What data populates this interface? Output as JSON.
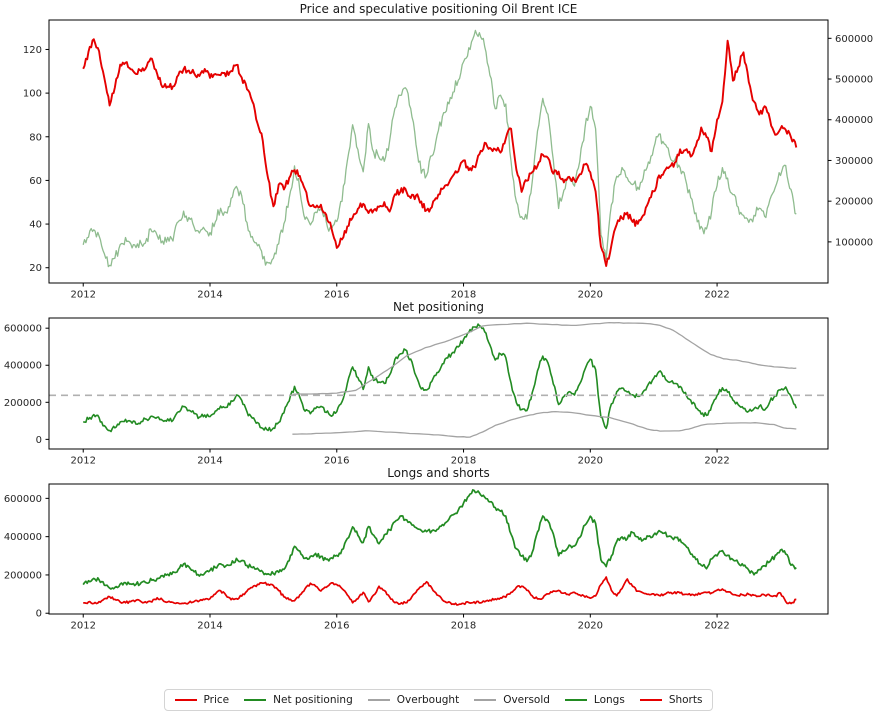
{
  "figure_background": "#ffffff",
  "legend": {
    "items": [
      {
        "label": "Price",
        "color": "#e50000"
      },
      {
        "label": "Net positioning",
        "color": "#228b22"
      },
      {
        "label": "Overbought",
        "color": "#a3a3a3"
      },
      {
        "label": "Oversold",
        "color": "#a3a3a3"
      },
      {
        "label": "Longs",
        "color": "#228b22"
      },
      {
        "label": "Shorts",
        "color": "#e50000"
      }
    ]
  },
  "chart_data": [
    {
      "id": "price-positioning",
      "type": "line",
      "title": "Price and speculative positioning Oil Brent ICE",
      "x_start": 2012.0,
      "x_step": 0.083333,
      "xlim": [
        2011.46,
        2023.75
      ],
      "x_ticks": [
        2012,
        2014,
        2016,
        2018,
        2020,
        2022
      ],
      "grid": false,
      "left_axis": {
        "lim": [
          13,
          133.5
        ],
        "ticks": [
          20,
          40,
          60,
          80,
          100,
          120
        ]
      },
      "right_axis": {
        "lim": [
          -1000,
          645000
        ],
        "ticks": [
          100000,
          200000,
          300000,
          400000,
          500000,
          600000
        ]
      },
      "series": [
        {
          "name": "Speculative positioning",
          "axis": "right",
          "color": "#8fbc8f",
          "width": 1.3,
          "jitter": 13000,
          "values": [
            95000,
            112000,
            132000,
            115000,
            72000,
            45000,
            62000,
            92000,
            108000,
            95000,
            84000,
            98000,
            108000,
            128000,
            116000,
            100000,
            110000,
            104000,
            148000,
            178000,
            158000,
            138000,
            120000,
            130000,
            122000,
            152000,
            183000,
            172000,
            205000,
            238000,
            212000,
            148000,
            112000,
            88000,
            60000,
            50000,
            58000,
            95000,
            145000,
            205000,
            288000,
            230000,
            155000,
            140000,
            170000,
            180000,
            148000,
            128000,
            150000,
            200000,
            300000,
            390000,
            330000,
            270000,
            390000,
            320000,
            310000,
            300000,
            350000,
            430000,
            460000,
            480000,
            430000,
            340000,
            270000,
            265000,
            310000,
            360000,
            410000,
            440000,
            470000,
            500000,
            540000,
            575000,
            605000,
            615000,
            580000,
            510000,
            430000,
            460000,
            440000,
            300000,
            200000,
            160000,
            155000,
            250000,
            370000,
            450000,
            410000,
            300000,
            185000,
            230000,
            260000,
            240000,
            300000,
            380000,
            430000,
            380000,
            120000,
            60000,
            190000,
            260000,
            280000,
            255000,
            240000,
            235000,
            255000,
            295000,
            330000,
            365000,
            340000,
            310000,
            300000,
            285000,
            255000,
            210000,
            170000,
            135000,
            130000,
            180000,
            240000,
            280000,
            255000,
            215000,
            185000,
            165000,
            150000,
            165000,
            180000,
            160000,
            205000,
            235000,
            265000,
            285000,
            230000,
            165000
          ]
        },
        {
          "name": "Price",
          "axis": "left",
          "color": "#e50000",
          "width": 1.9,
          "jitter": 1.5,
          "values": [
            111,
            119,
            125,
            119,
            107,
            94,
            103,
            113,
            114,
            111,
            109,
            110,
            112,
            116,
            109,
            103,
            103,
            103,
            108,
            111,
            110,
            109,
            108,
            111,
            107,
            109,
            108,
            108,
            110,
            113,
            107,
            102,
            96,
            86,
            78,
            61,
            48,
            58,
            56,
            61,
            65,
            62,
            56,
            48,
            48,
            49,
            44,
            38,
            29,
            33,
            39,
            43,
            47,
            49,
            45,
            46,
            48,
            50,
            46,
            54,
            55,
            56,
            52,
            53,
            50,
            46,
            48,
            52,
            56,
            58,
            62,
            64,
            69,
            65,
            66,
            72,
            77,
            75,
            74,
            73,
            79,
            84,
            65,
            55,
            60,
            64,
            67,
            72,
            70,
            63,
            64,
            59,
            62,
            60,
            63,
            67,
            64,
            55,
            30,
            21,
            30,
            40,
            43,
            45,
            41,
            40,
            44,
            50,
            55,
            62,
            64,
            66,
            68,
            74,
            74,
            71,
            76,
            84,
            80,
            73,
            88,
            96,
            124,
            106,
            112,
            119,
            105,
            96,
            90,
            94,
            88,
            81,
            84,
            83,
            80,
            75
          ]
        }
      ]
    },
    {
      "id": "net-positioning",
      "type": "line",
      "title": "Net positioning",
      "x_start": 2012.0,
      "x_step": 0.083333,
      "xlim": [
        2011.46,
        2023.75
      ],
      "x_ticks": [
        2012,
        2014,
        2016,
        2018,
        2020,
        2022
      ],
      "grid": false,
      "left_axis": {
        "lim": [
          -52000,
          655000
        ],
        "ticks": [
          0,
          200000,
          400000,
          600000
        ]
      },
      "series": [
        {
          "name": "Net positioning",
          "axis": "left",
          "color": "#228b22",
          "width": 1.6,
          "jitter": 13000,
          "values": [
            95000,
            112000,
            132000,
            115000,
            72000,
            45000,
            62000,
            92000,
            108000,
            95000,
            84000,
            98000,
            108000,
            128000,
            116000,
            100000,
            110000,
            104000,
            148000,
            178000,
            158000,
            138000,
            120000,
            130000,
            122000,
            152000,
            183000,
            172000,
            205000,
            238000,
            212000,
            148000,
            112000,
            88000,
            60000,
            50000,
            58000,
            95000,
            145000,
            205000,
            288000,
            230000,
            155000,
            140000,
            170000,
            180000,
            148000,
            128000,
            150000,
            200000,
            300000,
            390000,
            330000,
            270000,
            390000,
            320000,
            310000,
            300000,
            350000,
            430000,
            460000,
            480000,
            430000,
            340000,
            270000,
            265000,
            310000,
            360000,
            410000,
            440000,
            470000,
            500000,
            540000,
            575000,
            605000,
            615000,
            580000,
            510000,
            430000,
            460000,
            440000,
            300000,
            200000,
            160000,
            155000,
            250000,
            370000,
            450000,
            410000,
            300000,
            185000,
            230000,
            260000,
            240000,
            300000,
            380000,
            430000,
            380000,
            120000,
            60000,
            190000,
            260000,
            280000,
            255000,
            240000,
            235000,
            255000,
            295000,
            330000,
            365000,
            340000,
            310000,
            300000,
            285000,
            255000,
            210000,
            170000,
            135000,
            130000,
            180000,
            240000,
            280000,
            255000,
            215000,
            185000,
            165000,
            150000,
            165000,
            180000,
            160000,
            205000,
            235000,
            265000,
            285000,
            230000,
            165000
          ]
        },
        {
          "name": "Overbought",
          "axis": "left",
          "color": "#a3a3a3",
          "width": 1.3,
          "jitter": 1500,
          "x": [
            2015.3,
            2015.7,
            2016.0,
            2016.3,
            2016.55,
            2016.8,
            2017.1,
            2017.4,
            2017.7,
            2018.0,
            2018.3,
            2018.6,
            2019.0,
            2019.4,
            2019.7,
            2020.0,
            2020.3,
            2020.6,
            2020.9,
            2021.1,
            2021.3,
            2021.5,
            2021.7,
            2021.9,
            2022.1,
            2022.3,
            2022.5,
            2022.7,
            2022.9,
            2023.1,
            2023.25
          ],
          "values": [
            243000,
            246000,
            250000,
            265000,
            320000,
            375000,
            450000,
            495000,
            525000,
            565000,
            612000,
            620000,
            627000,
            620000,
            615000,
            622000,
            630000,
            628000,
            625000,
            615000,
            590000,
            545000,
            500000,
            458000,
            435000,
            428000,
            415000,
            400000,
            391000,
            386000,
            384000
          ]
        },
        {
          "name": "Oversold",
          "axis": "left",
          "color": "#a3a3a3",
          "width": 1.3,
          "jitter": 1200,
          "x": [
            2015.3,
            2015.6,
            2015.9,
            2016.2,
            2016.45,
            2016.7,
            2017.0,
            2017.3,
            2017.6,
            2017.9,
            2018.1,
            2018.3,
            2018.5,
            2018.75,
            2019.0,
            2019.2,
            2019.45,
            2019.7,
            2020.0,
            2020.3,
            2020.6,
            2020.9,
            2021.1,
            2021.4,
            2021.6,
            2021.8,
            2022.0,
            2022.3,
            2022.6,
            2022.9,
            2023.05,
            2023.25
          ],
          "values": [
            28000,
            30000,
            34000,
            40000,
            46000,
            42000,
            36000,
            30000,
            24000,
            14000,
            12000,
            40000,
            75000,
            105000,
            128000,
            142000,
            150000,
            145000,
            130000,
            118000,
            90000,
            55000,
            45000,
            46000,
            60000,
            80000,
            85000,
            88000,
            90000,
            80000,
            62000,
            56000
          ]
        },
        {
          "name": "Mean",
          "axis": "left",
          "color": "#b0b0b0",
          "width": 1.6,
          "jitter": 0,
          "dashed": true,
          "x": [
            2011.46,
            2023.75
          ],
          "values": [
            238000,
            238000
          ]
        }
      ]
    },
    {
      "id": "longs-shorts",
      "type": "line",
      "title": "Longs and shorts",
      "x_start": 2012.0,
      "x_step": 0.083333,
      "xlim": [
        2011.46,
        2023.75
      ],
      "x_ticks": [
        2012,
        2014,
        2016,
        2018,
        2020,
        2022
      ],
      "grid": false,
      "left_axis": {
        "lim": [
          -4000,
          675000
        ],
        "ticks": [
          0,
          200000,
          400000,
          600000
        ]
      },
      "series": [
        {
          "name": "Longs",
          "axis": "left",
          "color": "#228b22",
          "width": 1.7,
          "jitter": 12000,
          "values": [
            148000,
            168000,
            185000,
            172000,
            148000,
            130000,
            135000,
            152000,
            162000,
            155000,
            150000,
            158000,
            160000,
            175000,
            180000,
            195000,
            205000,
            215000,
            230000,
            260000,
            240000,
            215000,
            195000,
            210000,
            225000,
            240000,
            260000,
            245000,
            255000,
            285000,
            275000,
            250000,
            240000,
            235000,
            215000,
            205000,
            205000,
            215000,
            230000,
            275000,
            350000,
            322000,
            285000,
            295000,
            310000,
            295000,
            282000,
            288000,
            300000,
            330000,
            390000,
            450000,
            405000,
            370000,
            450000,
            405000,
            365000,
            410000,
            435000,
            475000,
            510000,
            492000,
            472000,
            448000,
            430000,
            428000,
            430000,
            440000,
            465000,
            485000,
            512000,
            540000,
            575000,
            615000,
            640000,
            628000,
            605000,
            580000,
            555000,
            535000,
            505000,
            410000,
            335000,
            300000,
            272000,
            320000,
            425000,
            505000,
            485000,
            415000,
            302000,
            325000,
            355000,
            350000,
            395000,
            462000,
            505000,
            468000,
            282000,
            245000,
            300000,
            372000,
            400000,
            390000,
            422000,
            400000,
            380000,
            400000,
            410000,
            430000,
            420000,
            400000,
            395000,
            385000,
            355000,
            310000,
            280000,
            250000,
            235000,
            285000,
            300000,
            325000,
            305000,
            280000,
            262000,
            248000,
            225000,
            200000,
            230000,
            250000,
            270000,
            300000,
            330000,
            310000,
            250000,
            240000
          ]
        },
        {
          "name": "Shorts",
          "axis": "left",
          "color": "#e50000",
          "width": 1.7,
          "jitter": 6500,
          "values": [
            55000,
            58000,
            52000,
            60000,
            75000,
            85000,
            72000,
            58000,
            55000,
            62000,
            68000,
            60000,
            55000,
            60000,
            80000,
            70000,
            60000,
            58000,
            52000,
            50000,
            55000,
            60000,
            65000,
            70000,
            75000,
            100000,
            118000,
            95000,
            70000,
            75000,
            90000,
            115000,
            135000,
            150000,
            158000,
            152000,
            145000,
            120000,
            85000,
            70000,
            65000,
            95000,
            130000,
            155000,
            140000,
            115000,
            135000,
            160000,
            150000,
            130000,
            95000,
            55000,
            75000,
            110000,
            60000,
            95000,
            140000,
            120000,
            85000,
            55000,
            50000,
            55000,
            75000,
            110000,
            140000,
            165000,
            130000,
            95000,
            70000,
            55000,
            48000,
            45000,
            50000,
            55000,
            58000,
            55000,
            60000,
            68000,
            75000,
            80000,
            85000,
            110000,
            135000,
            140000,
            120000,
            90000,
            75000,
            80000,
            100000,
            115000,
            120000,
            105000,
            95000,
            110000,
            95000,
            85000,
            80000,
            90000,
            150000,
            190000,
            120000,
            90000,
            130000,
            180000,
            140000,
            115000,
            105000,
            100000,
            100000,
            95000,
            100000,
            105000,
            110000,
            105000,
            100000,
            95000,
            100000,
            105000,
            110000,
            105000,
            120000,
            128000,
            112000,
            98000,
            92000,
            96000,
            100000,
            95000,
            90000,
            95000,
            92000,
            90000,
            105000,
            60000,
            50000,
            72000
          ]
        }
      ]
    }
  ]
}
